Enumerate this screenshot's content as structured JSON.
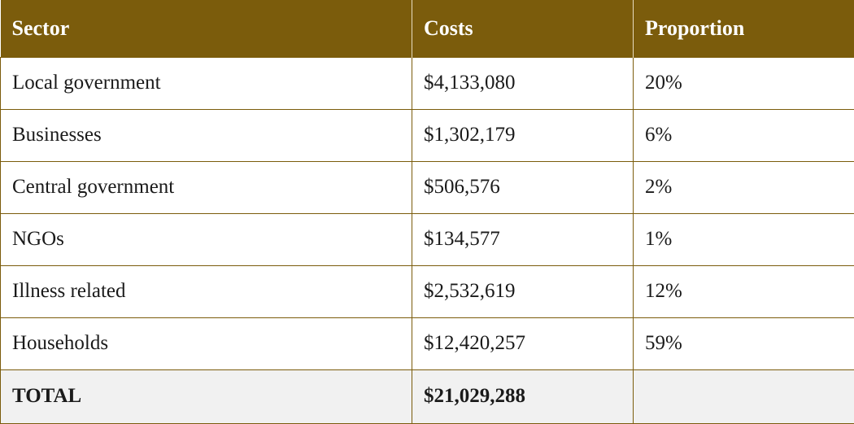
{
  "table": {
    "headers": [
      "Sector",
      "Costs",
      "Proportion"
    ],
    "rows": [
      {
        "sector": "Local government",
        "costs": "$4,133,080",
        "proportion": "20%"
      },
      {
        "sector": "Businesses",
        "costs": "$1,302,179",
        "proportion": "6%"
      },
      {
        "sector": "Central government",
        "costs": "$506,576",
        "proportion": "2%"
      },
      {
        "sector": "NGOs",
        "costs": "$134,577",
        "proportion": "1%"
      },
      {
        "sector": "Illness related",
        "costs": "$2,532,619",
        "proportion": "12%"
      },
      {
        "sector": "Households",
        "costs": "$12,420,257",
        "proportion": "59%"
      }
    ],
    "total": {
      "label": "TOTAL",
      "costs": "$21,029,288",
      "proportion": ""
    }
  },
  "colors": {
    "header_bg": "#7b5c0c",
    "border": "#7b5c0c",
    "total_bg": "#f1f1f1"
  }
}
